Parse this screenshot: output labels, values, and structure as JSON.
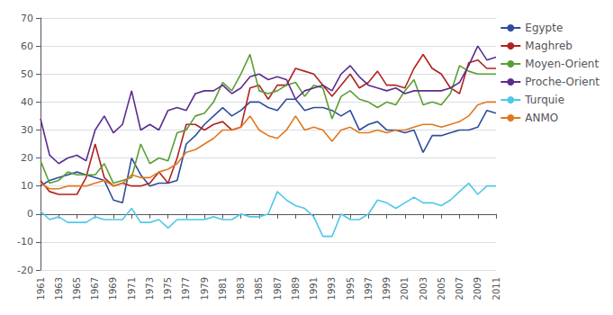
{
  "chart_data": {
    "type": "line",
    "x": [
      1961,
      1962,
      1963,
      1964,
      1965,
      1966,
      1967,
      1968,
      1969,
      1970,
      1971,
      1972,
      1973,
      1974,
      1975,
      1976,
      1977,
      1978,
      1979,
      1980,
      1981,
      1982,
      1983,
      1984,
      1985,
      1986,
      1987,
      1988,
      1989,
      1990,
      1991,
      1992,
      1993,
      1994,
      1995,
      1996,
      1997,
      1998,
      1999,
      2000,
      2001,
      2002,
      2003,
      2004,
      2005,
      2006,
      2007,
      2008,
      2009,
      2010,
      2011
    ],
    "series": [
      {
        "name": "Egypte",
        "color": "#2E4D9C",
        "values": [
          10,
          12,
          13,
          14,
          15,
          14,
          13,
          12,
          5,
          4,
          20,
          14,
          10,
          11,
          11,
          12,
          25,
          28,
          32,
          35,
          38,
          35,
          37,
          40,
          40,
          38,
          37,
          41,
          41,
          37,
          38,
          38,
          37,
          35,
          37,
          30,
          32,
          33,
          30,
          30,
          29,
          30,
          22,
          28,
          28,
          29,
          30,
          30,
          31,
          37,
          36
        ]
      },
      {
        "name": "Maghreb",
        "color": "#B22222",
        "values": [
          12,
          8,
          7,
          7,
          7,
          13,
          25,
          13,
          10,
          11,
          10,
          10,
          11,
          15,
          11,
          20,
          32,
          32,
          30,
          32,
          33,
          30,
          31,
          45,
          46,
          41,
          46,
          46,
          52,
          51,
          50,
          46,
          42,
          46,
          50,
          45,
          47,
          51,
          46,
          46,
          45,
          52,
          57,
          52,
          50,
          45,
          43,
          54,
          55,
          52,
          52
        ]
      },
      {
        "name": "Moyen-Orient",
        "color": "#5A9E32",
        "values": [
          19,
          11,
          12,
          15,
          14,
          14,
          14,
          18,
          11,
          12,
          13,
          25,
          18,
          20,
          19,
          29,
          30,
          35,
          36,
          40,
          47,
          44,
          50,
          57,
          44,
          43,
          44,
          46,
          47,
          42,
          46,
          45,
          34,
          42,
          44,
          41,
          40,
          38,
          40,
          39,
          44,
          48,
          39,
          40,
          39,
          43,
          53,
          51,
          50,
          50,
          50
        ]
      },
      {
        "name": "Proche-Orient",
        "color": "#5B2D8E",
        "values": [
          34,
          21,
          18,
          20,
          21,
          19,
          30,
          35,
          29,
          32,
          44,
          30,
          32,
          30,
          37,
          38,
          37,
          43,
          44,
          44,
          46,
          43,
          45,
          49,
          50,
          48,
          49,
          48,
          41,
          44,
          45,
          46,
          44,
          50,
          53,
          49,
          46,
          45,
          44,
          45,
          43,
          44,
          44,
          44,
          44,
          45,
          47,
          53,
          60,
          55,
          56
        ]
      },
      {
        "name": "Turquie",
        "color": "#4FC8E8",
        "values": [
          1,
          -2,
          -1,
          -3,
          -3,
          -3,
          -1,
          -2,
          -2,
          -2,
          2,
          -3,
          -3,
          -2,
          -5,
          -2,
          -2,
          -2,
          -2,
          -1,
          -2,
          -2,
          0,
          -1,
          -1,
          0,
          8,
          5,
          3,
          2,
          -1,
          -8,
          -8,
          0,
          -2,
          -2,
          0,
          5,
          4,
          2,
          4,
          6,
          4,
          4,
          3,
          5,
          8,
          11,
          7,
          10,
          10
        ]
      },
      {
        "name": "ANMO",
        "color": "#E07820",
        "values": [
          11,
          9,
          9,
          10,
          10,
          10,
          11,
          12,
          10,
          11,
          14,
          13,
          13,
          15,
          16,
          18,
          22,
          23,
          25,
          27,
          30,
          30,
          31,
          35,
          30,
          28,
          27,
          30,
          35,
          30,
          31,
          30,
          26,
          30,
          31,
          29,
          29,
          30,
          29,
          30,
          30,
          31,
          32,
          32,
          31,
          32,
          33,
          35,
          39,
          40,
          40
        ]
      }
    ],
    "xlim": [
      1961,
      2011
    ],
    "xticks": [
      1961,
      1963,
      1965,
      1967,
      1969,
      1971,
      1973,
      1975,
      1977,
      1979,
      1981,
      1983,
      1985,
      1987,
      1989,
      1991,
      1993,
      1995,
      1997,
      1999,
      2001,
      2003,
      2005,
      2007,
      2009,
      2011
    ],
    "ylim": [
      -20,
      70
    ],
    "yticks": [
      -20,
      -10,
      0,
      10,
      20,
      30,
      40,
      50,
      60,
      70
    ],
    "grid": true,
    "legend": "right"
  }
}
